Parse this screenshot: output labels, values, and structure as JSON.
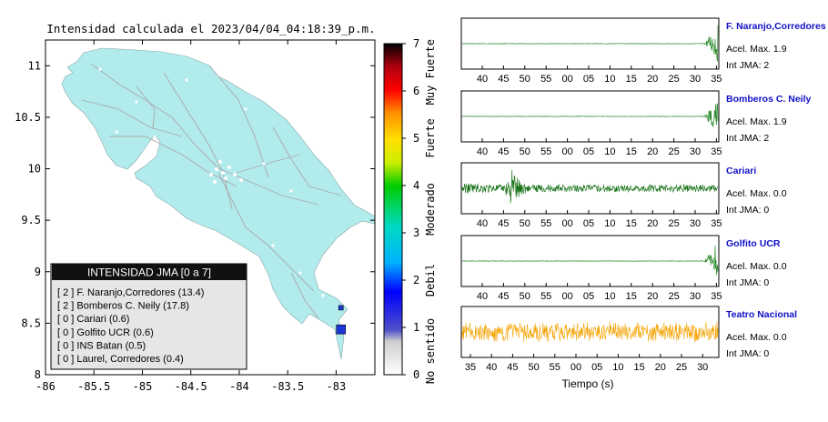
{
  "map": {
    "title": "Intensidad calculada el 2023/04/04_04:18:39_p.m.",
    "x_ticks": [
      "-86",
      "-85.5",
      "-85",
      "-84.5",
      "-84",
      "-83.5",
      "-83"
    ],
    "y_ticks": [
      "11",
      "10.5",
      "10",
      "9.5",
      "9",
      "8.5",
      "8"
    ],
    "xlim": [
      -86,
      -82.6
    ],
    "ylim": [
      8,
      11.25
    ],
    "land_color": "#b2ebec",
    "station_marker_color": "#1b36d6",
    "stations_plotted": [
      {
        "lon": -82.95,
        "lat": 8.44
      },
      {
        "lon": -82.95,
        "lat": 8.65
      }
    ]
  },
  "colorbar": {
    "ticks": [
      "0",
      "1",
      "2",
      "3",
      "4",
      "5",
      "6",
      "7"
    ],
    "labels": [
      "No sentido",
      "Debil",
      "Moderado",
      "Fuerte",
      "Muy Fuerte"
    ]
  },
  "legend": {
    "title": "INTENSIDAD JMA [0 a 7]",
    "items": [
      "[ 2 ]  F. Naranjo,Corredores (13.4)",
      "[ 2 ]  Bomberos C. Neily (17.8)",
      "[ 0 ]  Cariari (0.6)",
      "[ 0 ]  Golfito UCR (0.6)",
      "[ 0 ]  INS Batan (0.5)",
      "[ 0 ]  Laurel, Corredores (0.4)"
    ]
  },
  "waveforms": [
    {
      "name": "F. Naranjo,Corredores",
      "accel": "Acel. Max. 1.9",
      "jma": "Int JMA: 2",
      "color": "#2a8a2a",
      "ticks": [
        "40",
        "45",
        "50",
        "55",
        "00",
        "05",
        "10",
        "15",
        "20",
        "25",
        "30",
        "35"
      ],
      "kind": "spike"
    },
    {
      "name": "Bomberos C. Neily",
      "accel": "Acel. Max. 1.9",
      "jma": "Int JMA: 2",
      "color": "#2a8a2a",
      "ticks": [
        "40",
        "45",
        "50",
        "55",
        "00",
        "05",
        "10",
        "15",
        "20",
        "25",
        "30",
        "35"
      ],
      "kind": "spike"
    },
    {
      "name": "Cariari",
      "accel": "Acel. Max. 0.0",
      "jma": "Int JMA: 0",
      "color": "#0b6b0b",
      "ticks": [
        "40",
        "45",
        "50",
        "55",
        "00",
        "05",
        "10",
        "15",
        "20",
        "25",
        "30",
        "35"
      ],
      "kind": "noise_early"
    },
    {
      "name": "Golfito UCR",
      "accel": "Acel. Max. 0.0",
      "jma": "Int JMA: 0",
      "color": "#2a8a2a",
      "ticks": [
        "40",
        "45",
        "50",
        "55",
        "00",
        "05",
        "10",
        "15",
        "20",
        "25",
        "30",
        "35"
      ],
      "kind": "spike"
    },
    {
      "name": "Teatro Nacional",
      "accel": "Acel. Max. 0.0",
      "jma": "Int JMA: 0",
      "color": "#f5a300",
      "ticks": [
        "35",
        "40",
        "45",
        "50",
        "55",
        "00",
        "05",
        "10",
        "15",
        "20",
        "25",
        "30"
      ],
      "kind": "noise_full"
    }
  ],
  "xlabel": "Tiempo (s)"
}
